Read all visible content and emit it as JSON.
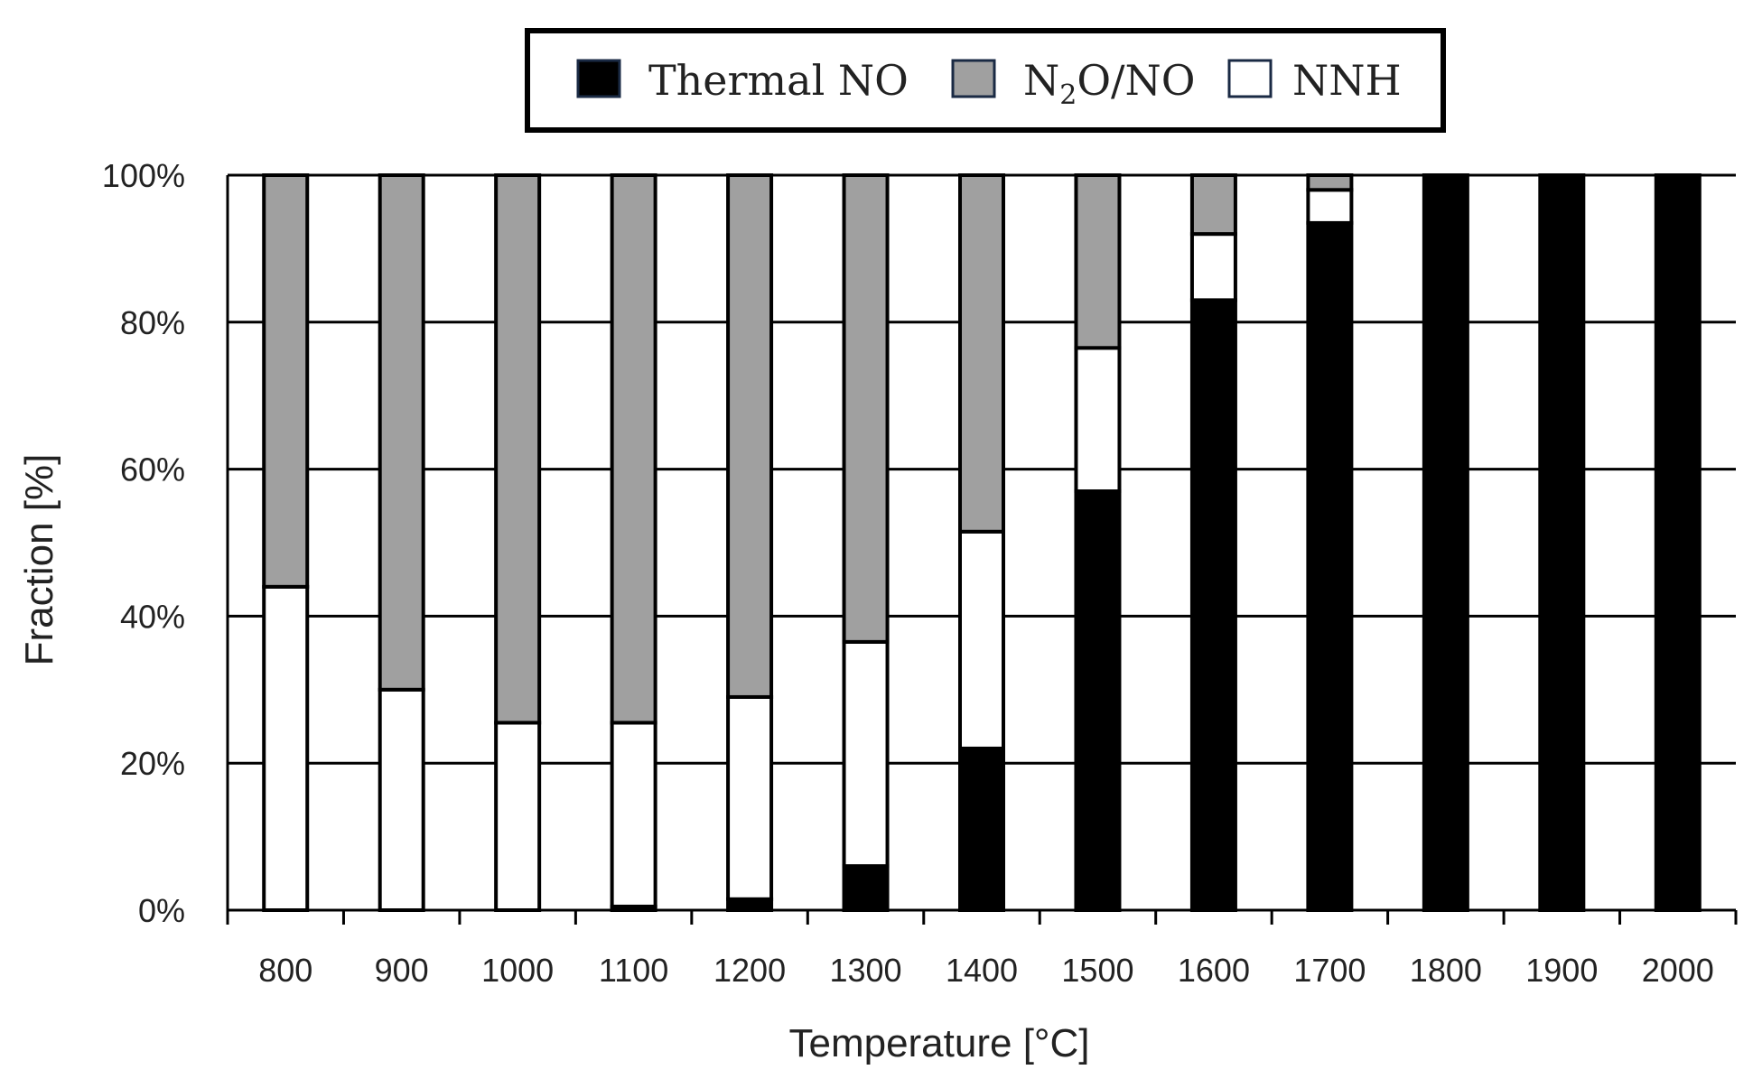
{
  "chart_data": {
    "type": "bar",
    "stacked": true,
    "normalized": true,
    "categories": [
      "800",
      "900",
      "1000",
      "1100",
      "1200",
      "1300",
      "1400",
      "1500",
      "1600",
      "1700",
      "1800",
      "1900",
      "2000"
    ],
    "series": [
      {
        "name": "Thermal NO",
        "color": "#000000",
        "values": [
          0,
          0,
          0,
          0.5,
          1.5,
          6,
          22,
          57,
          83,
          93.5,
          100,
          100,
          100
        ]
      },
      {
        "name": "NNH",
        "color": "#ffffff",
        "values": [
          44,
          30,
          25.5,
          25,
          27.5,
          30.5,
          29.5,
          19.5,
          9,
          4.5,
          0,
          0,
          0
        ]
      },
      {
        "name": "N2O/NO",
        "color": "#a0a0a0",
        "values": [
          56,
          70,
          74.5,
          74.5,
          71,
          63.5,
          48.5,
          23.5,
          8,
          2,
          0,
          0,
          0
        ]
      }
    ],
    "legend": {
      "position": "top-center",
      "items": [
        {
          "label": "Thermal NO",
          "color": "#000000"
        },
        {
          "label_main": "N",
          "label_sub": "2",
          "label_rest": "O/NO",
          "color": "#a0a0a0"
        },
        {
          "label": "NNH",
          "color": "#ffffff"
        }
      ]
    },
    "xlabel": "Temperature [°C]",
    "ylabel": "Fraction [%]",
    "ylim": [
      0,
      100
    ],
    "yticks": [
      "0%",
      "20%",
      "40%",
      "60%",
      "80%",
      "100%"
    ],
    "yticks_values": [
      0,
      20,
      40,
      60,
      80,
      100
    ],
    "grid": true
  }
}
